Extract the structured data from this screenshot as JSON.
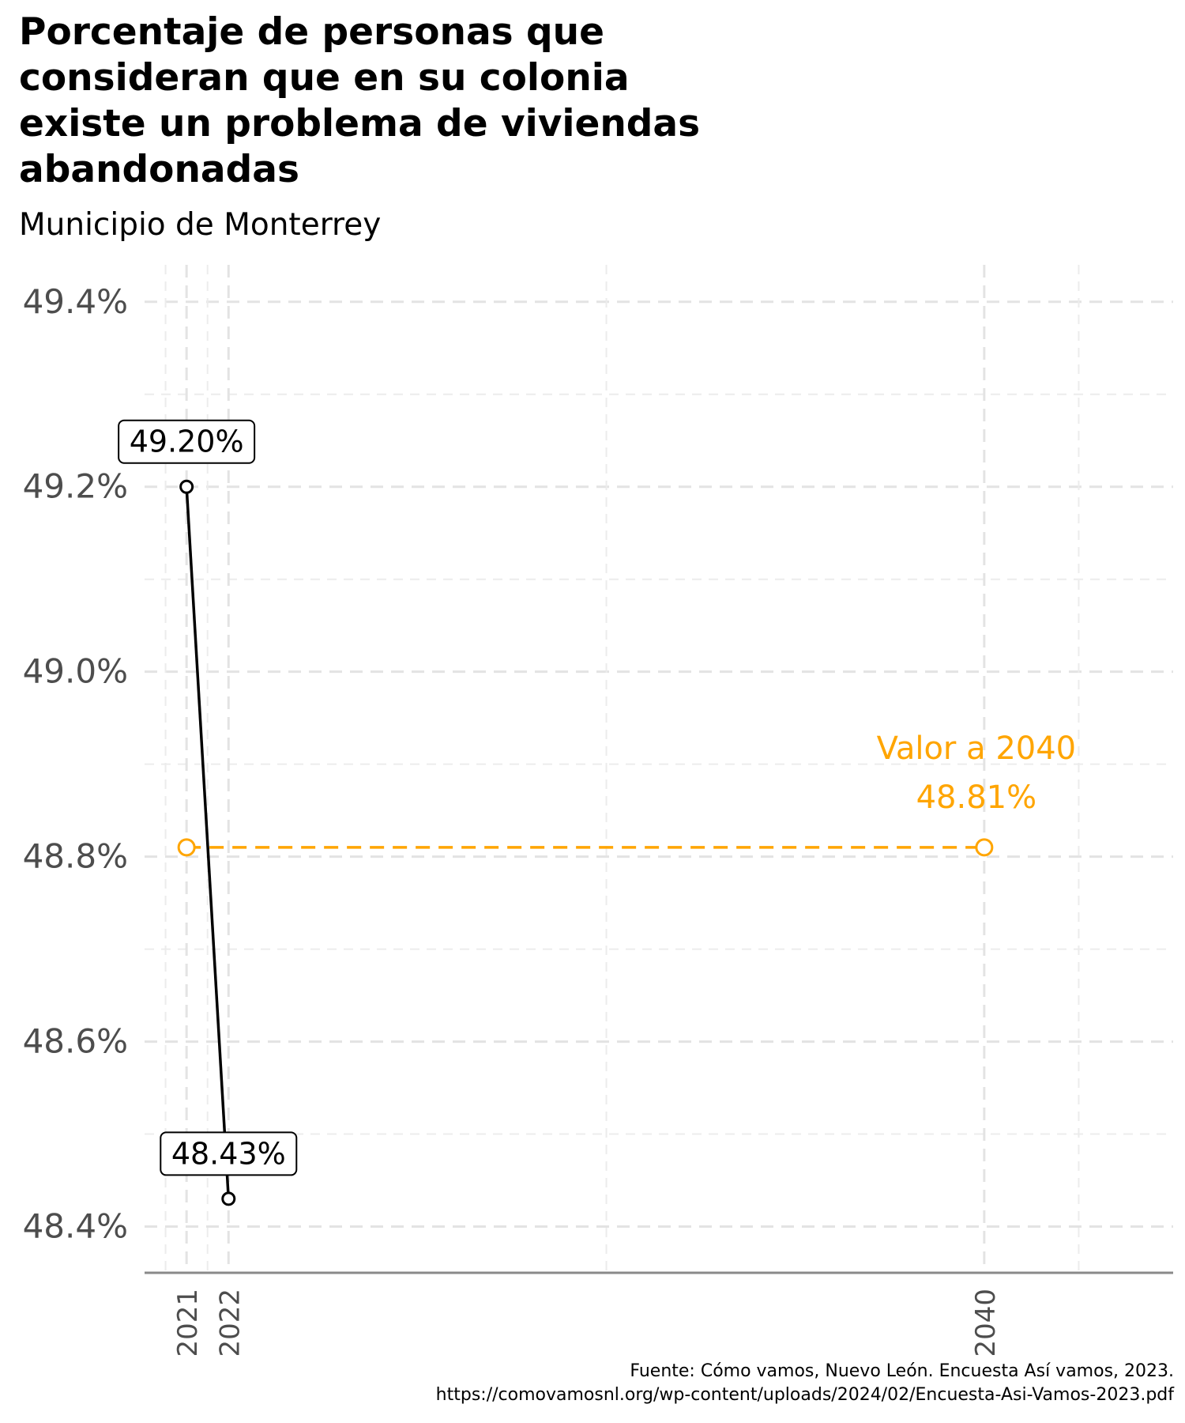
{
  "chart_data": {
    "type": "line",
    "title": "Porcentaje de personas que consideran que en su colonia existe un problema de viviendas abandonadas",
    "subtitle": "Municipio de Monterrey",
    "xlabel": "",
    "ylabel": "",
    "x_ticks": [
      "2021",
      "2022",
      "2040"
    ],
    "y_ticks": [
      "49.4%",
      "49.2%",
      "49.0%",
      "48.8%",
      "48.6%",
      "48.4%"
    ],
    "ylim": [
      48.35,
      49.44
    ],
    "xlim": [
      2020.0,
      2044.5
    ],
    "series": [
      {
        "color": "#000000",
        "x": [
          2021,
          2022
        ],
        "y": [
          49.2,
          48.43
        ],
        "labels": [
          "49.20%",
          "48.43%"
        ]
      },
      {
        "color": "#FFA500",
        "dashed": true,
        "x": [
          2021,
          2040
        ],
        "y": [
          48.81,
          48.81
        ]
      }
    ],
    "annotations": [
      {
        "text": "Valor a 2040",
        "color": "#FFA500"
      },
      {
        "text": "48.81%",
        "color": "#FFA500"
      }
    ],
    "grid": true,
    "caption": [
      "Fuente: Cómo vamos, Nuevo León. Encuesta Así vamos, 2023.",
      "https://comovamosnl.org/wp-content/uploads/2024/02/Encuesta-Asi-Vamos-2023.pdf"
    ]
  }
}
